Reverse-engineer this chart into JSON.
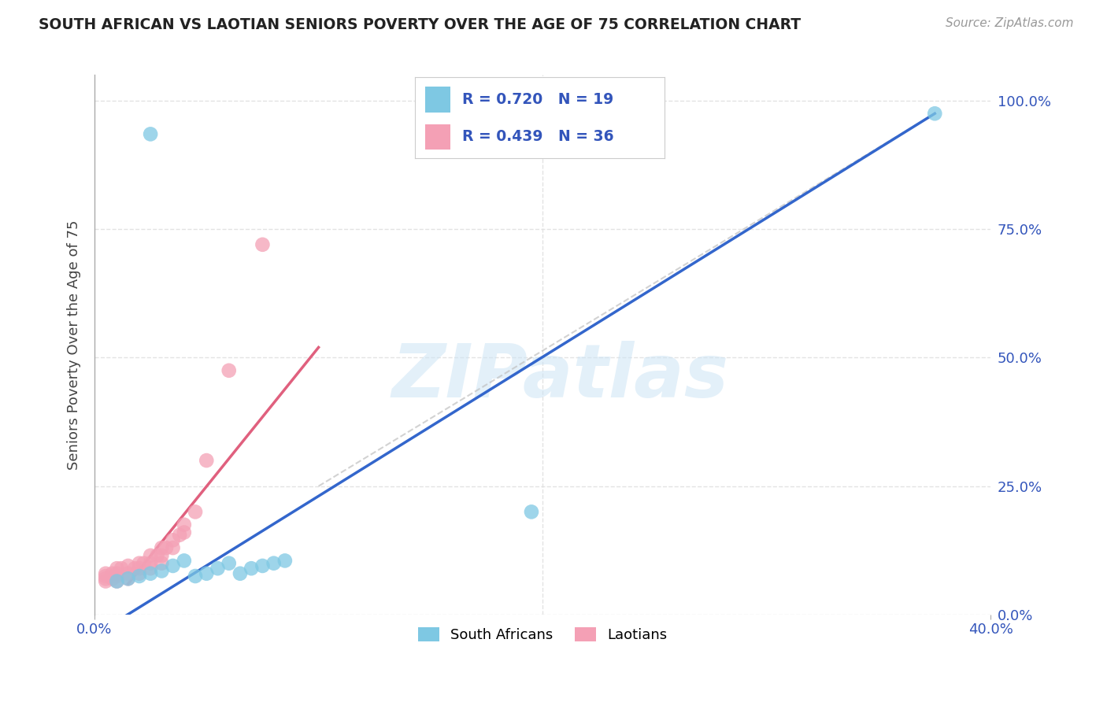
{
  "title": "SOUTH AFRICAN VS LAOTIAN SENIORS POVERTY OVER THE AGE OF 75 CORRELATION CHART",
  "source": "Source: ZipAtlas.com",
  "ylabel": "Seniors Poverty Over the Age of 75",
  "watermark": "ZIPatlas",
  "xlim": [
    0.0,
    0.42
  ],
  "ylim": [
    -0.05,
    1.1
  ],
  "plot_xlim": [
    0.0,
    0.4
  ],
  "plot_ylim": [
    0.0,
    1.05
  ],
  "yticks_right": [
    0.0,
    0.25,
    0.5,
    0.75,
    1.0
  ],
  "ytick_labels_right": [
    "0.0%",
    "25.0%",
    "50.0%",
    "75.0%",
    "100.0%"
  ],
  "xtick_positions": [
    0.0,
    0.4
  ],
  "xtick_labels": [
    "0.0%",
    "40.0%"
  ],
  "blue_R": 0.72,
  "blue_N": 19,
  "pink_R": 0.439,
  "pink_N": 36,
  "blue_color": "#7ec8e3",
  "pink_color": "#f4a0b5",
  "blue_line_color": "#3366cc",
  "pink_line_color": "#e0607e",
  "ref_line_color": "#cccccc",
  "title_color": "#222222",
  "stat_color": "#3355bb",
  "background_color": "#ffffff",
  "grid_color": "#dddddd",
  "south_africans_x": [
    0.025,
    0.01,
    0.015,
    0.02,
    0.025,
    0.03,
    0.035,
    0.04,
    0.045,
    0.05,
    0.055,
    0.06,
    0.065,
    0.07,
    0.075,
    0.08,
    0.085,
    0.195,
    0.375
  ],
  "south_africans_y": [
    0.935,
    0.065,
    0.07,
    0.075,
    0.08,
    0.085,
    0.095,
    0.105,
    0.075,
    0.08,
    0.09,
    0.1,
    0.08,
    0.09,
    0.095,
    0.1,
    0.105,
    0.2,
    0.975
  ],
  "laotians_x": [
    0.005,
    0.005,
    0.005,
    0.005,
    0.008,
    0.008,
    0.01,
    0.01,
    0.01,
    0.01,
    0.012,
    0.015,
    0.015,
    0.015,
    0.018,
    0.02,
    0.02,
    0.02,
    0.022,
    0.025,
    0.025,
    0.025,
    0.028,
    0.03,
    0.03,
    0.03,
    0.032,
    0.035,
    0.035,
    0.038,
    0.04,
    0.04,
    0.045,
    0.05,
    0.06,
    0.075
  ],
  "laotians_y": [
    0.065,
    0.07,
    0.075,
    0.08,
    0.07,
    0.08,
    0.065,
    0.075,
    0.08,
    0.09,
    0.09,
    0.07,
    0.08,
    0.095,
    0.09,
    0.08,
    0.09,
    0.1,
    0.1,
    0.09,
    0.1,
    0.115,
    0.115,
    0.1,
    0.115,
    0.13,
    0.13,
    0.13,
    0.145,
    0.155,
    0.16,
    0.175,
    0.2,
    0.3,
    0.475,
    0.72
  ],
  "blue_line_x": [
    0.0,
    0.375
  ],
  "blue_line_y": [
    -0.04,
    0.975
  ],
  "pink_line_x": [
    0.015,
    0.1
  ],
  "pink_line_y": [
    0.06,
    0.52
  ],
  "ref_line_x": [
    0.1,
    0.375
  ],
  "ref_line_y": [
    0.25,
    0.975
  ]
}
